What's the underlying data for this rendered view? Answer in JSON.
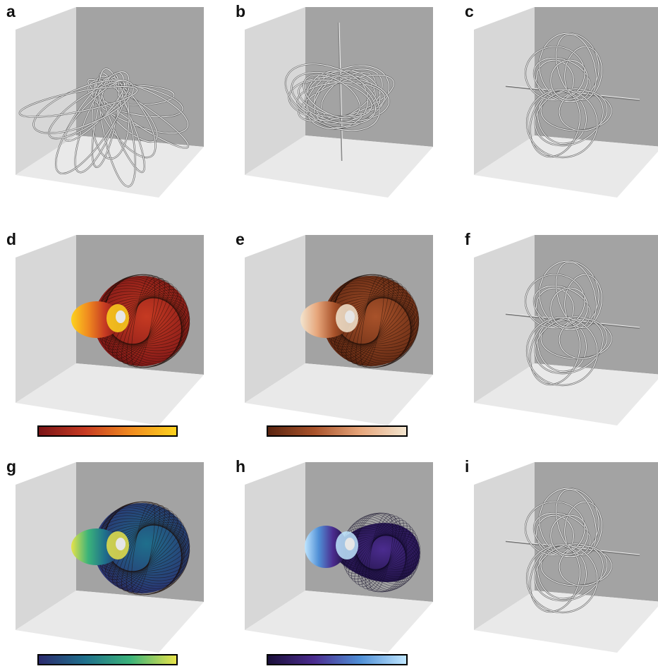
{
  "panels": [
    {
      "label": "a",
      "content": "loops"
    },
    {
      "label": "b",
      "content": "loops"
    },
    {
      "label": "c",
      "content": "loops"
    },
    {
      "label": "d",
      "content": "surface",
      "colormap": "heat"
    },
    {
      "label": "e",
      "content": "surface",
      "colormap": "copper"
    },
    {
      "label": "f",
      "content": "loops"
    },
    {
      "label": "g",
      "content": "surface",
      "colormap": "viridis"
    },
    {
      "label": "h",
      "content": "surface",
      "colormap": "blues"
    },
    {
      "label": "i",
      "content": "loops"
    }
  ],
  "colors": {
    "back_wall": "#a3a3a3",
    "side_wall": "#d7d7d7",
    "floor": "#e9e9e9"
  },
  "colormaps": {
    "heat": [
      "#7a1416",
      "#c63a22",
      "#f08a1f",
      "#fdd21e"
    ],
    "copper": [
      "#5a2410",
      "#a8522a",
      "#e6a57a",
      "#f3e5cf"
    ],
    "viridis": [
      "#2b2a6e",
      "#1f6f8c",
      "#3bb37a",
      "#e7e34a"
    ],
    "blues": [
      "#1a0f3a",
      "#4b2c8f",
      "#4f8fd6",
      "#bfe6ff"
    ]
  }
}
